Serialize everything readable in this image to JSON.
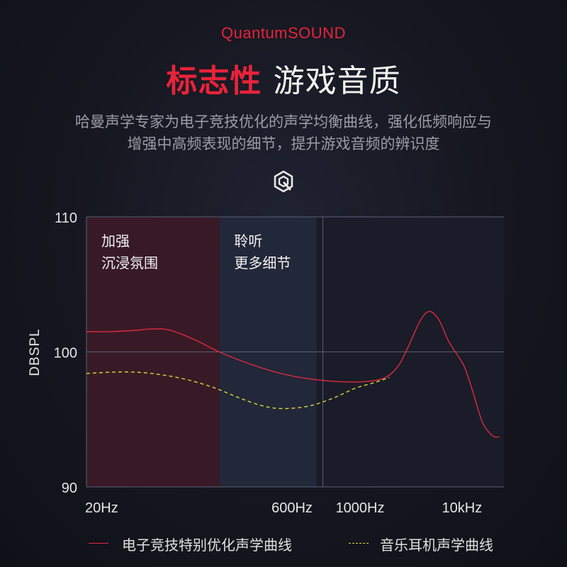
{
  "header": {
    "brand": "QuantumSOUND",
    "title_highlight": "标志性",
    "title_rest": "游戏音质",
    "description_line1": "哈曼声学专家为电子竞技优化的声学均衡曲线，强化低频响应与",
    "description_line2": "增强中高频表现的细节，提升游戏音频的辨识度"
  },
  "logo_icon": "quantum-q-logo-icon",
  "colors": {
    "accent_red": "#e8233a",
    "esports_curve": "#e0293f",
    "music_curve": "#d8d83a",
    "region_bass": "#3a1a26",
    "region_mid": "#23283a"
  },
  "chart_data": {
    "type": "line",
    "xscale": "log",
    "xlim": [
      20,
      20000
    ],
    "ylim": [
      90,
      110
    ],
    "ylabel": "DBSPL",
    "yticks": [
      110,
      100,
      90
    ],
    "xticks": [
      {
        "value": 20,
        "label": "20Hz"
      },
      {
        "value": 600,
        "label": "600Hz"
      },
      {
        "value": 1000,
        "label": "1000Hz"
      },
      {
        "value": 10000,
        "label": "10kHz"
      }
    ],
    "grid": true,
    "regions": [
      {
        "from": 20,
        "to": 180,
        "label_line1": "加强",
        "label_line2": "沉浸氛围"
      },
      {
        "from": 180,
        "to": 900,
        "label_line1": "聆听",
        "label_line2": "更多细节"
      }
    ],
    "series": [
      {
        "name": "电子竞技特别优化声学曲线",
        "style": "solid",
        "points": [
          [
            20,
            101.5
          ],
          [
            30,
            101.5
          ],
          [
            45,
            101.6
          ],
          [
            60,
            101.7
          ],
          [
            80,
            101.6
          ],
          [
            120,
            100.9
          ],
          [
            180,
            100.0
          ],
          [
            300,
            99.1
          ],
          [
            500,
            98.4
          ],
          [
            800,
            98.0
          ],
          [
            1300,
            97.8
          ],
          [
            2000,
            97.8
          ],
          [
            2800,
            98.1
          ],
          [
            3500,
            99.0
          ],
          [
            4200,
            100.6
          ],
          [
            5000,
            102.3
          ],
          [
            5800,
            103.0
          ],
          [
            6800,
            102.4
          ],
          [
            8000,
            100.8
          ],
          [
            9500,
            99.6
          ],
          [
            10500,
            98.8
          ],
          [
            12000,
            97.0
          ],
          [
            14000,
            94.8
          ],
          [
            16500,
            93.8
          ],
          [
            18500,
            93.7
          ]
        ]
      },
      {
        "name": "音乐耳机声学曲线",
        "style": "dashed",
        "points": [
          [
            20,
            98.4
          ],
          [
            30,
            98.5
          ],
          [
            45,
            98.5
          ],
          [
            70,
            98.3
          ],
          [
            110,
            97.9
          ],
          [
            170,
            97.3
          ],
          [
            250,
            96.6
          ],
          [
            370,
            96.0
          ],
          [
            520,
            95.8
          ],
          [
            800,
            96.0
          ],
          [
            1200,
            96.6
          ],
          [
            1700,
            97.3
          ],
          [
            2300,
            97.7
          ],
          [
            3000,
            98.1
          ]
        ]
      }
    ]
  }
}
